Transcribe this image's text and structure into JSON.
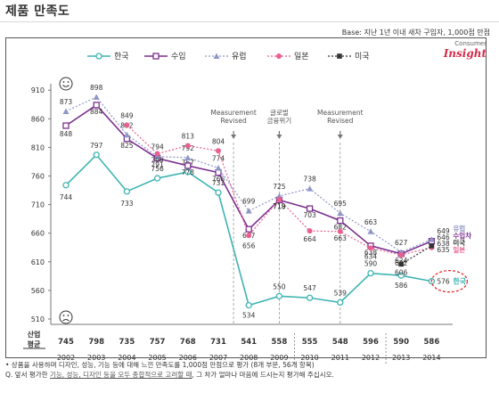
{
  "title": "제품 만족도",
  "base_note": "Base: 지난 1년 이내 새차 구입자, 1,000점 만점",
  "brand": {
    "line1": "Consumer",
    "line2": "Insight"
  },
  "chart_data": {
    "type": "line",
    "title": "",
    "xlabel": "",
    "ylabel": "",
    "x": [
      2002,
      2003,
      2004,
      2005,
      2006,
      2007,
      2008,
      2009,
      2010,
      2011,
      2012,
      2013,
      2014
    ],
    "ylim": [
      510,
      915
    ],
    "yticks": [
      510,
      560,
      610,
      660,
      710,
      760,
      810,
      860,
      910
    ],
    "grid": false,
    "legend": "top",
    "series": [
      {
        "name": "한국",
        "color": "#3fb3b3",
        "marker": "circle-open",
        "dash": "solid",
        "values": [
          744,
          797,
          733,
          756,
          767,
          731,
          534,
          550,
          547,
          539,
          590,
          586,
          576
        ]
      },
      {
        "name": "수입",
        "color": "#7b2f8e",
        "marker": "square-open",
        "dash": "solid",
        "values": [
          848,
          884,
          825,
          791,
          778,
          766,
          667,
          718,
          703,
          682,
          638,
          624,
          646
        ]
      },
      {
        "name": "유럽",
        "color": "#8e96c6",
        "marker": "triangle",
        "dash": "dotted",
        "values": [
          873,
          898,
          832,
          794,
          792,
          774,
          699,
          725,
          738,
          695,
          663,
          627,
          649
        ]
      },
      {
        "name": "일본",
        "color": "#e8608f",
        "marker": "circle",
        "dash": "dotted",
        "values": [
          null,
          null,
          849,
          799,
          813,
          804,
          656,
          719,
          664,
          663,
          634,
          622,
          635
        ]
      },
      {
        "name": "미국",
        "color": "#333333",
        "marker": "square",
        "dash": "dotted",
        "values": [
          null,
          null,
          null,
          null,
          null,
          null,
          null,
          null,
          null,
          null,
          null,
          606,
          638
        ]
      }
    ],
    "annotations": [
      {
        "x": 2007.5,
        "text": [
          "Measurement",
          "Revised"
        ]
      },
      {
        "x": 2009,
        "text": [
          "글로벌",
          "금융위기"
        ]
      },
      {
        "x": 2011,
        "text": [
          "Measurement",
          "Revised"
        ]
      }
    ],
    "end_labels": [
      "유럽",
      "수입차",
      "미국",
      "일본",
      "한국"
    ],
    "bottom_row_label": [
      "산업",
      "평균"
    ],
    "industry_avg": [
      745,
      798,
      735,
      757,
      768,
      731,
      541,
      558,
      555,
      548,
      596,
      590,
      586
    ]
  },
  "footnotes": {
    "line1": "• 상품을 사용하며 디자인, 성능, 기능 등에 대해 느낀 만족도를 1,000점 만점으로 평가 (8개 부문, 56개 항목)",
    "line2_pre": "Q. 앞서 평가한 ",
    "line2_u": "기능, 성능, 디자인 등을 모두 종합적으로 고려할 때",
    "line2_post": ", 그 차가 얼마나 마음에 드시는지 평가해 주십시오."
  }
}
